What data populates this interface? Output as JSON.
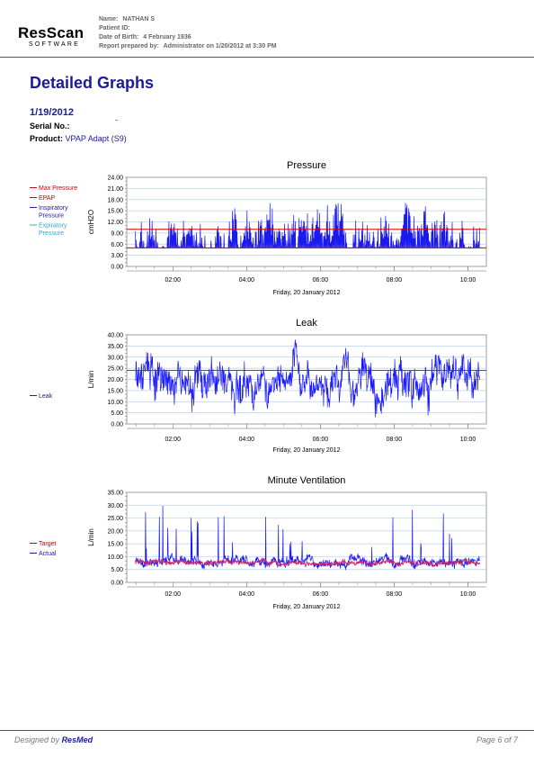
{
  "logo": {
    "main": "ResScan",
    "sub": "SOFTWARE"
  },
  "patient": {
    "name_label": "Name:",
    "name": "NATHAN S",
    "id_label": "Patient ID:",
    "id": "",
    "dob_label": "Date of Birth:",
    "dob": "4 February 1936",
    "report_label": "Report prepared by:",
    "report": "Administrator on 1/20/2012 at 3:30 PM"
  },
  "page_title": "Detailed Graphs",
  "session_date": "1/19/2012",
  "serial": {
    "label": "Serial No.:",
    "value": "-"
  },
  "product": {
    "label": "Product:",
    "value": "VPAP Adapt (S9)"
  },
  "footer": {
    "designed_by": "Designed by",
    "brand": "ResMed",
    "page": "Page 6 of 7"
  },
  "colors": {
    "title_blue": "#1a1a9c",
    "series_blue": "#1a1aff",
    "threshold_red": "#cc0000",
    "series_light_blue": "#33aacc",
    "grid": "#b8d0e8"
  },
  "chart_data": [
    {
      "type": "line",
      "title": "Pressure",
      "ylabel": "cmH2O",
      "xlabel": "Friday, 20 January 2012",
      "ylim": [
        0,
        24
      ],
      "yticks": [
        "0.00",
        "3.00",
        "6.00",
        "9.00",
        "12.00",
        "15.00",
        "18.00",
        "21.00",
        "24.00"
      ],
      "xticks": [
        "02:00",
        "04:00",
        "06:00",
        "08:00",
        "10:00"
      ],
      "xrange_hours": [
        0.75,
        10.5
      ],
      "legend": [
        "Max Pressure",
        "EPAP",
        "Inspiratory Pressure",
        "Expiratory Pressure"
      ],
      "legend_lines": [
        [
          "Max Pressure"
        ],
        [
          "EPAP"
        ],
        [
          "Inspiratory",
          "Pressure"
        ],
        [
          "Expiratory",
          "Pressure"
        ]
      ],
      "legend_colors": [
        "#cc0000",
        "#cc0000",
        "#1a1a9c",
        "#33aacc"
      ],
      "thresholds": [
        {
          "name": "Max Pressure",
          "value": 10
        },
        {
          "name": "EPAP",
          "value": 5
        }
      ],
      "series": [
        {
          "name": "Inspiratory Pressure",
          "start_hour": 0.98,
          "end_hour": 10.32,
          "base": 9,
          "spread": 8,
          "min": 5,
          "max": 20,
          "fill_to": 5
        }
      ]
    },
    {
      "type": "line",
      "title": "Leak",
      "ylabel": "L/min",
      "xlabel": "Friday, 20 January 2012",
      "ylim": [
        0,
        40
      ],
      "yticks": [
        "0.00",
        "5.00",
        "10.00",
        "15.00",
        "20.00",
        "25.00",
        "30.00",
        "35.00",
        "40.00"
      ],
      "xticks": [
        "02:00",
        "04:00",
        "06:00",
        "08:00",
        "10:00"
      ],
      "xrange_hours": [
        0.75,
        10.5
      ],
      "legend": [
        "Leak"
      ],
      "legend_lines": [
        [
          "Leak"
        ]
      ],
      "legend_colors": [
        "#1a1a9c"
      ],
      "thresholds": [
        {
          "name": "",
          "value": 24
        }
      ],
      "series": [
        {
          "name": "Leak",
          "start_hour": 0.98,
          "end_hour": 10.32,
          "base": 20,
          "spread": 12,
          "min": 0,
          "max": 40
        }
      ]
    },
    {
      "type": "line",
      "title": "Minute Ventilation",
      "ylabel": "L/min",
      "xlabel": "Friday, 20 January 2012",
      "ylim": [
        0,
        35
      ],
      "yticks": [
        "0.00",
        "5.00",
        "10.00",
        "15.00",
        "20.00",
        "25.00",
        "30.00",
        "35.00"
      ],
      "xticks": [
        "02:00",
        "04:00",
        "06:00",
        "08:00",
        "10:00"
      ],
      "xrange_hours": [
        0.75,
        10.5
      ],
      "legend": [
        "Target",
        "Actual"
      ],
      "legend_lines": [
        [
          "Target"
        ],
        [
          "Actual"
        ]
      ],
      "legend_colors": [
        "#cc0000",
        "#1a1a9c"
      ],
      "thresholds": [],
      "series": [
        {
          "name": "Actual",
          "start_hour": 0.98,
          "end_hour": 10.32,
          "base": 8,
          "spread": 2.5,
          "min": 4,
          "max": 30,
          "spikes": true
        },
        {
          "name": "Target",
          "start_hour": 0.98,
          "end_hour": 10.32,
          "base": 7.5,
          "spread": 1.2,
          "min": 4,
          "max": 14
        }
      ]
    }
  ]
}
